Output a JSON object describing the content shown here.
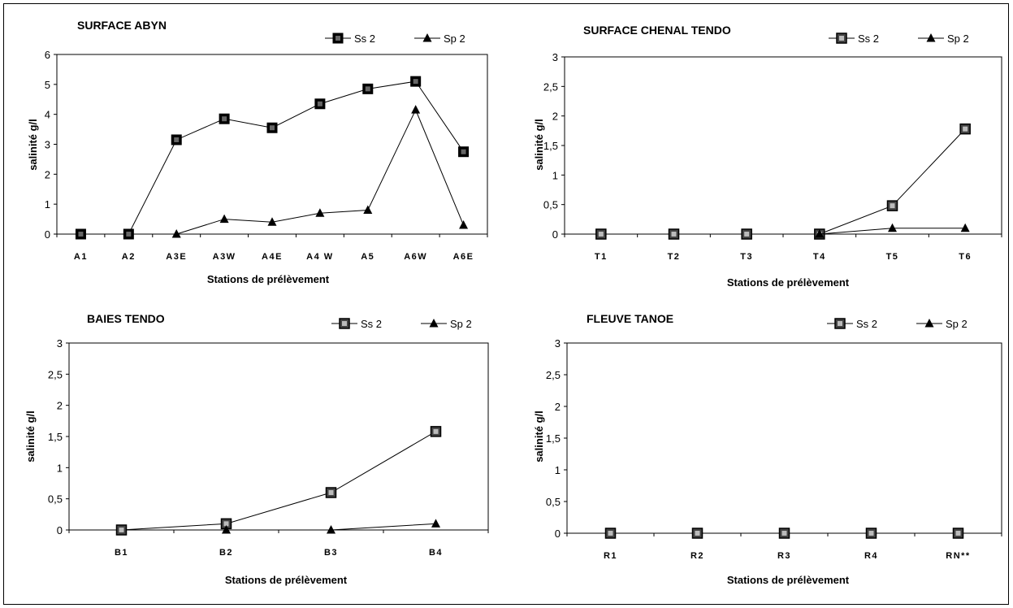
{
  "chart_data": [
    {
      "type": "line",
      "title": "SURFACE ABYN",
      "xlabel": "Stations de prélèvement",
      "ylabel": "salinité g/l",
      "ylim": [
        0,
        6
      ],
      "yticks": [
        "0",
        "1",
        "2",
        "3",
        "4",
        "5",
        "6"
      ],
      "categories": [
        "A1",
        "A2",
        "A3E",
        "A3W",
        "A4E",
        "A4 W",
        "A5",
        "A6W",
        "A6E"
      ],
      "series": [
        {
          "name": "Ss 2",
          "marker": "square",
          "values": [
            0,
            0,
            3.15,
            3.85,
            3.55,
            4.35,
            4.85,
            5.1,
            2.75
          ]
        },
        {
          "name": "Sp 2",
          "marker": "triangle",
          "values": [
            null,
            null,
            0,
            0.5,
            0.4,
            0.7,
            0.8,
            4.15,
            0.3
          ]
        }
      ],
      "legend": "top-right",
      "grid": false
    },
    {
      "type": "line",
      "title": "SURFACE CHENAL TENDO",
      "xlabel": "Stations de prélèvement",
      "ylabel": "salinité g/l",
      "ylim": [
        0,
        3
      ],
      "yticks": [
        "0",
        "0,5",
        "1",
        "1,5",
        "2",
        "2,5",
        "3"
      ],
      "categories": [
        "T1",
        "T2",
        "T3",
        "T4",
        "T5",
        "T6"
      ],
      "series": [
        {
          "name": "Ss 2",
          "marker": "square-open",
          "values": [
            0,
            0,
            0,
            0,
            0.48,
            1.78
          ]
        },
        {
          "name": "Sp 2",
          "marker": "triangle",
          "values": [
            null,
            null,
            null,
            0,
            0.1,
            0.1
          ]
        }
      ],
      "legend": "top-right",
      "grid": false
    },
    {
      "type": "line",
      "title": "BAIES TENDO",
      "xlabel": "Stations de prélèvement",
      "ylabel": "salinité g/l",
      "ylim": [
        0,
        3
      ],
      "yticks": [
        "0",
        "0,5",
        "1",
        "1,5",
        "2",
        "2,5",
        "3"
      ],
      "categories": [
        "B1",
        "B2",
        "B3",
        "B4"
      ],
      "series": [
        {
          "name": "Ss 2",
          "marker": "square-open",
          "values": [
            0,
            0.1,
            0.6,
            1.58
          ]
        },
        {
          "name": "Sp 2",
          "marker": "triangle",
          "values": [
            null,
            0,
            0,
            0.1
          ]
        }
      ],
      "legend": "top-right",
      "grid": false
    },
    {
      "type": "line",
      "title": "FLEUVE TANOE",
      "xlabel": "Stations de prélèvement",
      "ylabel": "salinité g/l",
      "ylim": [
        0,
        3
      ],
      "yticks": [
        "0",
        "0,5",
        "1",
        "1,5",
        "2",
        "2,5",
        "3"
      ],
      "categories": [
        "R1",
        "R2",
        "R3",
        "R4",
        "RN**"
      ],
      "series": [
        {
          "name": "Ss 2",
          "marker": "square-open",
          "values": [
            0,
            0,
            0,
            0,
            0
          ]
        },
        {
          "name": "Sp 2",
          "marker": "triangle",
          "values": [
            null,
            null,
            null,
            null,
            null
          ]
        }
      ],
      "legend": "top-right",
      "grid": false
    }
  ]
}
